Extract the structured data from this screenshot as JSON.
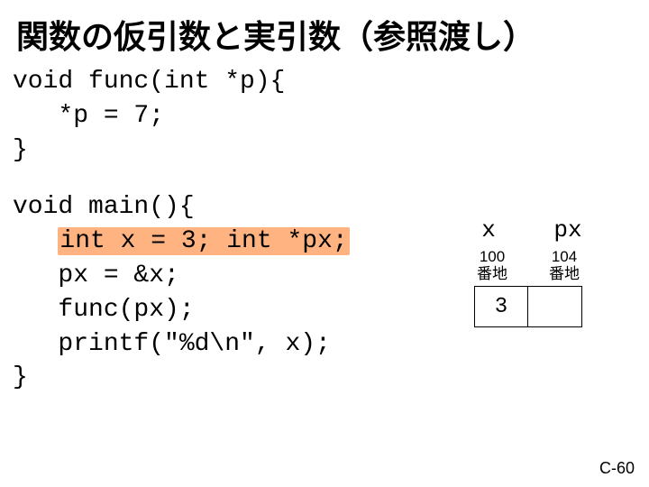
{
  "title": "関数の仮引数と実引数（参照渡し）",
  "code1": {
    "line1": "void func(int *p){",
    "line2": "   *p = 7;",
    "line3": "}"
  },
  "code2": {
    "line1": "void main(){",
    "line2a": "   ",
    "line2hl": "int x = 3; int *px;",
    "line3": "   px = &x;",
    "line4": "   func(px);",
    "line5": "   printf(\"%d\\n\", x);",
    "line6": "}"
  },
  "memory": {
    "header_x": "x",
    "header_px": "px",
    "addr_x_num": "100",
    "addr_x_unit": "番地",
    "addr_px_num": "104",
    "addr_px_unit": "番地",
    "cell_x": "3",
    "cell_px": ""
  },
  "footer": "C-60",
  "colors": {
    "highlight_bg": "#ffb380",
    "text": "#000000",
    "bg": "#ffffff",
    "border": "#000000"
  },
  "fonts": {
    "title_size": 36,
    "code_size": 28,
    "addr_size": 17,
    "cell_size": 24,
    "footer_size": 18
  }
}
